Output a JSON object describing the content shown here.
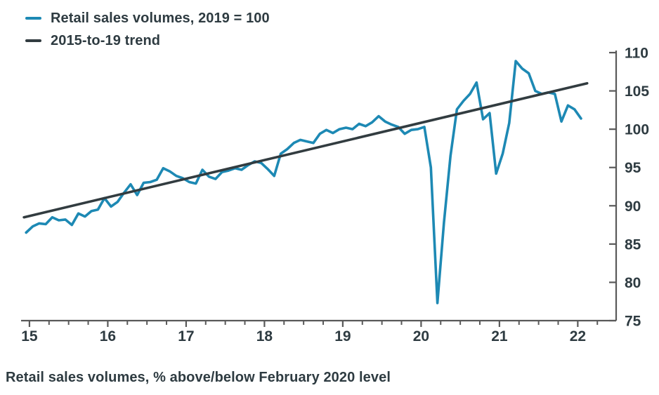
{
  "page": {
    "caption": "Retail sales volumes, % above/below February 2020 level"
  },
  "legend": [
    {
      "label": "Retail sales volumes, 2019 = 100",
      "color": "#1d89b4"
    },
    {
      "label": "2015-to-19 trend",
      "color": "#323c40"
    }
  ],
  "colors": {
    "retail_line": "#1d89b4",
    "trend_line": "#323c40",
    "axis": "#595959",
    "text": "#2e3b41",
    "background": "#ffffff"
  },
  "chart_data": {
    "type": "line",
    "title": "",
    "xlabel": "",
    "ylabel": "",
    "caption": "Retail sales volumes, % above/below February 2020 level",
    "legend_position": "top-left",
    "grid": false,
    "x_axis": {
      "min": 14.92,
      "max": 22.49,
      "major_ticks": [
        15,
        16,
        17,
        18,
        19,
        20,
        21,
        22
      ],
      "major_tick_labels": [
        "15",
        "16",
        "17",
        "18",
        "19",
        "20",
        "21",
        "22"
      ],
      "minor_tick_interval": 0.25,
      "units": "year (20xx)"
    },
    "y_axis": {
      "min": 75,
      "max": 110,
      "ticks": [
        75,
        80,
        85,
        90,
        95,
        100,
        105,
        110
      ],
      "side": "right",
      "units": "index, 2019 = 100"
    },
    "series": [
      {
        "name": "Retail sales volumes, 2019 = 100",
        "color": "#1d89b4",
        "frequency": "monthly",
        "start_x": 14.958,
        "x_step": 0.083333,
        "start_period": "Jan 2015",
        "end_period": "Feb 2022",
        "values": [
          86.5,
          87.3,
          87.7,
          87.6,
          88.5,
          88.1,
          88.2,
          87.5,
          89.0,
          88.6,
          89.3,
          89.5,
          91.0,
          89.9,
          90.5,
          91.7,
          92.8,
          91.4,
          93.0,
          93.1,
          93.4,
          94.9,
          94.5,
          93.9,
          93.6,
          93.1,
          92.9,
          94.7,
          93.8,
          93.5,
          94.4,
          94.6,
          94.9,
          94.7,
          95.3,
          95.8,
          95.6,
          94.8,
          93.9,
          96.8,
          97.4,
          98.2,
          98.6,
          98.4,
          98.2,
          99.4,
          99.9,
          99.5,
          100.0,
          100.2,
          100.0,
          100.7,
          100.4,
          100.9,
          101.7,
          101.0,
          100.6,
          100.3,
          99.4,
          99.9,
          100.0,
          100.3,
          95.0,
          77.3,
          87.8,
          96.5,
          102.6,
          103.7,
          104.6,
          106.1,
          101.3,
          102.1,
          94.2,
          96.8,
          100.8,
          108.9,
          107.9,
          107.3,
          105.0,
          104.6,
          104.8,
          104.6,
          101.0,
          103.1,
          102.6,
          101.4
        ]
      },
      {
        "name": "2015-to-19 trend",
        "color": "#323c40",
        "x": [
          14.93,
          22.12
        ],
        "values": [
          88.5,
          106.0
        ]
      }
    ]
  }
}
